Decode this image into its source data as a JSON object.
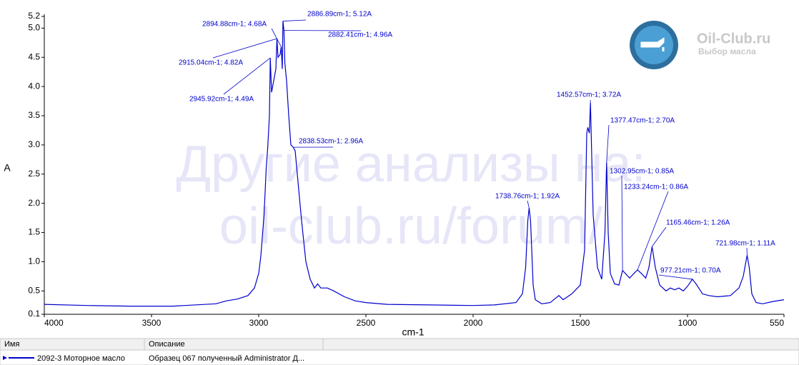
{
  "chart_data": {
    "type": "line",
    "x_label": "cm-1",
    "y_label": "A",
    "xlim": [
      4000,
      550
    ],
    "ylim": [
      0.1,
      5.2
    ],
    "xticks": [
      4000,
      3500,
      3000,
      2500,
      2000,
      1500,
      1000,
      550
    ],
    "yticks": [
      {
        "value": 5.2,
        "label": "5.2"
      },
      {
        "value": 5,
        "label": "5.0"
      },
      4.5,
      {
        "value": 4,
        "label": "4.0"
      },
      3.5,
      {
        "value": 3,
        "label": "3.0"
      },
      2.5,
      {
        "value": 2,
        "label": "2.0"
      },
      1.5,
      {
        "value": 1,
        "label": "1.0"
      },
      0.5,
      0.1
    ],
    "series": [
      {
        "name": "2092-3 Моторное масло",
        "color": "#0000cc",
        "x": [
          4000,
          3800,
          3600,
          3400,
          3200,
          3150,
          3100,
          3050,
          3020,
          3000,
          2990,
          2975,
          2965,
          2958,
          2950,
          2945.92,
          2940,
          2930,
          2920,
          2915.04,
          2910,
          2900,
          2894.88,
          2890,
          2886.89,
          2882.41,
          2878,
          2870,
          2860,
          2850,
          2838.53,
          2830,
          2820,
          2800,
          2780,
          2760,
          2740,
          2725,
          2710,
          2680,
          2650,
          2600,
          2550,
          2500,
          2400,
          2200,
          2000,
          1900,
          1800,
          1770,
          1755,
          1745,
          1738.76,
          1732,
          1720,
          1710,
          1680,
          1640,
          1600,
          1580,
          1540,
          1500,
          1480,
          1470,
          1465,
          1458,
          1452.57,
          1448,
          1440,
          1420,
          1400,
          1385,
          1377.47,
          1370,
          1360,
          1340,
          1320,
          1302.95,
          1290,
          1270,
          1250,
          1233.24,
          1215,
          1195,
          1180,
          1165.46,
          1150,
          1130,
          1100,
          1080,
          1060,
          1040,
          1020,
          1000,
          977.21,
          960,
          930,
          900,
          860,
          800,
          760,
          740,
          730,
          721.98,
          712,
          700,
          680,
          650,
          600,
          550
        ],
        "values": [
          0.27,
          0.25,
          0.24,
          0.24,
          0.28,
          0.33,
          0.36,
          0.42,
          0.55,
          0.8,
          1.1,
          1.8,
          2.6,
          2.95,
          3.5,
          4.49,
          3.9,
          4.1,
          4.3,
          4.82,
          4.5,
          4.55,
          4.68,
          4.3,
          5.12,
          4.96,
          4.4,
          4.1,
          3.5,
          3.0,
          2.96,
          2.9,
          2.5,
          1.7,
          1.0,
          0.7,
          0.55,
          0.62,
          0.55,
          0.55,
          0.5,
          0.4,
          0.33,
          0.3,
          0.27,
          0.26,
          0.25,
          0.26,
          0.3,
          0.45,
          0.9,
          1.7,
          1.92,
          1.7,
          0.6,
          0.35,
          0.28,
          0.3,
          0.42,
          0.35,
          0.45,
          0.6,
          1.2,
          3.2,
          3.3,
          3.2,
          3.72,
          3.0,
          1.8,
          0.9,
          0.7,
          1.5,
          2.7,
          1.5,
          0.8,
          0.62,
          0.6,
          0.85,
          0.8,
          0.72,
          0.8,
          0.86,
          0.8,
          0.72,
          0.9,
          1.26,
          0.9,
          0.6,
          0.5,
          0.55,
          0.52,
          0.55,
          0.5,
          0.58,
          0.7,
          0.62,
          0.45,
          0.42,
          0.4,
          0.42,
          0.55,
          0.75,
          0.95,
          1.11,
          0.9,
          0.45,
          0.3,
          0.28,
          0.32,
          0.35
        ]
      }
    ],
    "annotations": [
      {
        "text": "2886.89cm-1; 5.12A",
        "x": 2886.89,
        "y": 5.12
      },
      {
        "text": "2894.88cm-1; 4.68A",
        "x": 2894.88,
        "y": 4.68
      },
      {
        "text": "2882.41cm-1; 4.96A",
        "x": 2882.41,
        "y": 4.96
      },
      {
        "text": "2915.04cm-1; 4.82A",
        "x": 2915.04,
        "y": 4.82
      },
      {
        "text": "2945.92cm-1; 4.49A",
        "x": 2945.92,
        "y": 4.49
      },
      {
        "text": "2838.53cm-1; 2.96A",
        "x": 2838.53,
        "y": 2.96
      },
      {
        "text": "1452.57cm-1; 3.72A",
        "x": 1452.57,
        "y": 3.72
      },
      {
        "text": "1377.47cm-1; 2.70A",
        "x": 1377.47,
        "y": 2.7
      },
      {
        "text": "1302.95cm-1; 0.85A",
        "x": 1302.95,
        "y": 0.85
      },
      {
        "text": "1233.24cm-1; 0.86A",
        "x": 1233.24,
        "y": 0.86
      },
      {
        "text": "1165.46cm-1; 1.26A",
        "x": 1165.46,
        "y": 1.26
      },
      {
        "text": "1738.76cm-1; 1.92A",
        "x": 1738.76,
        "y": 1.92
      },
      {
        "text": "977.21cm-1; 0.70A",
        "x": 977.21,
        "y": 0.7
      },
      {
        "text": "721.98cm-1; 1.11A",
        "x": 721.98,
        "y": 1.11
      }
    ]
  },
  "watermark": [
    "Другие анализы на:",
    "oil-club.ru/forum/"
  ],
  "logo": {
    "name": "Oil-Club.ru",
    "tagline": "Выбор масла"
  },
  "table": {
    "headers": [
      "Имя",
      "Описание"
    ],
    "rows": [
      [
        "2092-3 Моторное масло",
        "Образец 067 полученный Administrator Д..."
      ]
    ]
  }
}
